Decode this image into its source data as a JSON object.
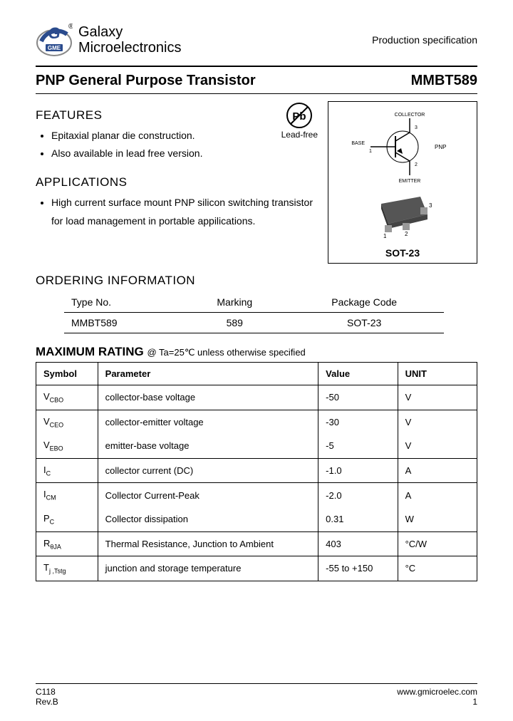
{
  "header": {
    "company_line1": "Galaxy",
    "company_line2": "Microelectronics",
    "spec": "Production specification"
  },
  "title": {
    "left": "PNP General Purpose Transistor",
    "right": "MMBT589"
  },
  "features": {
    "heading": "FEATURES",
    "items": [
      "Epitaxial planar die construction.",
      "Also available in lead free version."
    ],
    "leadfree": "Lead-free"
  },
  "applications": {
    "heading": "APPLICATIONS",
    "items": [
      "High current surface mount PNP silicon switching transistor for load management in portable appilications."
    ]
  },
  "package": {
    "label": "SOT-23",
    "pins": {
      "collector": "COLLECTOR",
      "base": "BASE",
      "emitter": "EMITTER",
      "type": "PNP"
    }
  },
  "ordering": {
    "heading": "ORDERING INFORMATION",
    "columns": [
      "Type No.",
      "Marking",
      "Package Code"
    ],
    "row": [
      "MMBT589",
      "589",
      "SOT-23"
    ]
  },
  "max_rating": {
    "heading": "MAXIMUM RATING",
    "condition": "@ Ta=25℃ unless otherwise specified",
    "columns": [
      "Symbol",
      "Parameter",
      "Value",
      "UNIT"
    ],
    "rows": [
      {
        "sym": "V",
        "sub": "CBO",
        "param": "collector-base voltage",
        "val": "-50",
        "unit": "V",
        "group": "a"
      },
      {
        "sym": "V",
        "sub": "CEO",
        "param": "collector-emitter voltage",
        "val": "-30",
        "unit": "V",
        "group": "b"
      },
      {
        "sym": "V",
        "sub": "EBO",
        "param": "emitter-base voltage",
        "val": "-5",
        "unit": "V",
        "group": "b"
      },
      {
        "sym": "I",
        "sub": "C",
        "param": "collector current (DC)",
        "val": "-1.0",
        "unit": "A",
        "group": "c"
      },
      {
        "sym": "I",
        "sub": "CM",
        "param": "Collector Current-Peak",
        "val": "-2.0",
        "unit": "A",
        "group": "d"
      },
      {
        "sym": "P",
        "sub": "C",
        "param": "Collector dissipation",
        "val": "0.31",
        "unit": "W",
        "group": "d"
      },
      {
        "sym": "R",
        "sub": "θJA",
        "param": "Thermal Resistance, Junction to Ambient",
        "val": "403",
        "unit": "°C/W",
        "group": "e"
      },
      {
        "sym": "T",
        "sub": "j ,Tstg",
        "param": "junction and storage temperature",
        "val": "-55 to +150",
        "unit": "°C",
        "group": "f"
      }
    ]
  },
  "footer": {
    "left1": "C118",
    "left2": "Rev.B",
    "right1": "www.gmicroelec.com",
    "right2": "1"
  },
  "colors": {
    "text": "#000000",
    "border": "#000000",
    "bg": "#ffffff",
    "logo_blue": "#2a4b8d",
    "logo_gray": "#888888"
  }
}
